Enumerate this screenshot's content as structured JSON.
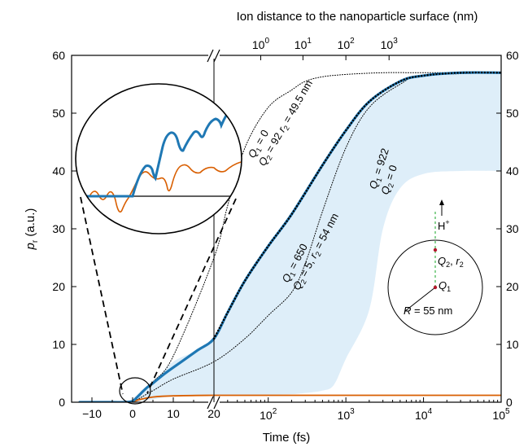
{
  "chart_data": {
    "type": "line",
    "title": "",
    "xlabel": "Time (fs)",
    "ylabel": "p",
    "ylabel_subscript": "r",
    "ylabel_unit": " (a.u.)",
    "top_axis_label": "Ion distance to the nanoparticle surface (nm)",
    "x_scale": "linear up to 20 fs (axis break), logarithmic from 20 to 100000 fs",
    "ylim": [
      0,
      60
    ],
    "x_linear_range": [
      -15,
      20
    ],
    "x_log_range": [
      20,
      100000
    ],
    "y_ticks": [
      "0",
      "10",
      "20",
      "30",
      "40",
      "50",
      "60"
    ],
    "x_ticks_linear": [
      "−10",
      "0",
      "10",
      "20"
    ],
    "x_ticks_log": [
      {
        "base": "10",
        "exp": "2"
      },
      {
        "base": "10",
        "exp": "3"
      },
      {
        "base": "10",
        "exp": "4"
      },
      {
        "base": "10",
        "exp": "5"
      }
    ],
    "top_ticks": [
      {
        "base": "10",
        "exp": "0"
      },
      {
        "base": "10",
        "exp": "1"
      },
      {
        "base": "10",
        "exp": "2"
      },
      {
        "base": "10",
        "exp": "3"
      }
    ],
    "grid": false,
    "series": [
      {
        "color": "#1f78b4",
        "style": "thick solid",
        "x": [
          -13,
          -10,
          -5,
          -2,
          0,
          1,
          2,
          3,
          4,
          5,
          8,
          12,
          16,
          20,
          30,
          50,
          100,
          200,
          500,
          1000,
          2000,
          5000,
          10000,
          30000,
          100000
        ],
        "y": [
          0,
          0,
          0,
          0,
          0.2,
          0.8,
          1.5,
          2.2,
          2.8,
          3.3,
          5,
          7,
          9,
          11,
          15.5,
          21,
          27,
          32.5,
          41,
          47,
          52,
          55.5,
          56.5,
          57,
          57
        ]
      },
      {
        "color": "#d95f02",
        "style": "solid",
        "x": [
          -13,
          -10,
          -5,
          -2,
          0,
          2,
          5,
          10,
          20,
          50,
          100,
          1000,
          10000,
          100000
        ],
        "y": [
          0,
          0,
          0,
          0,
          0.1,
          0.5,
          0.9,
          1.1,
          1.2,
          1.2,
          1.2,
          1.2,
          1.2,
          1.2
        ]
      },
      {
        "color": "#000000",
        "style": "thick dotted",
        "x": [
          20,
          30,
          50,
          100,
          200,
          500,
          1000,
          2000,
          5000,
          10000,
          30000,
          100000
        ],
        "y": [
          11,
          15.5,
          21,
          27,
          32.5,
          41,
          47,
          52,
          55.5,
          56.5,
          57,
          57
        ]
      },
      {
        "color": "#000000",
        "style": "thin dotted",
        "x": [
          0,
          5,
          10,
          20,
          30,
          50,
          100,
          200,
          300,
          500,
          1000,
          3000,
          10000,
          100000
        ],
        "y": [
          0,
          3.5,
          8,
          25,
          34,
          44,
          51,
          54,
          55.5,
          56.3,
          56.7,
          57,
          57,
          57
        ]
      },
      {
        "color": "#000000",
        "style": "thin dotted",
        "x": [
          0,
          5,
          10,
          20,
          50,
          100,
          200,
          300,
          500,
          1000,
          2000,
          5000,
          10000,
          100000
        ],
        "y": [
          0,
          2,
          4,
          7,
          11,
          15,
          19,
          24,
          33,
          44,
          51,
          55,
          56.5,
          57
        ]
      }
    ],
    "shaded_band": {
      "color": "#deeef9",
      "x": [
        0,
        5,
        10,
        20,
        50,
        100,
        200,
        300,
        500,
        700,
        1000,
        2000,
        3000,
        5000,
        10000,
        30000,
        100000
      ],
      "upper": [
        0,
        3.3,
        7,
        11,
        21,
        27,
        32.5,
        36,
        41,
        44,
        47,
        52,
        54,
        55.5,
        56.5,
        57,
        57
      ],
      "lower": [
        0,
        0.5,
        1,
        1.2,
        1.2,
        1.3,
        1.4,
        1.6,
        2,
        3,
        7.5,
        16,
        30,
        37,
        39.5,
        40,
        40
      ]
    },
    "annotations": [
      {
        "line1_sym": "Q",
        "line1_sub": "1",
        "line1_val": " = 0",
        "line2_sym": "Q",
        "line2_sub": "2",
        "line2_val": " = 92 ",
        "line2_sym2": "r",
        "line2_sub2": "2",
        "line2_val2": " = 49.5 nm"
      },
      {
        "line1_sym": "Q",
        "line1_sub": "1",
        "line1_val": " = 650",
        "line2_sym": "Q",
        "line2_sub": "2",
        "line2_val": " = 5, ",
        "line2_sym2": "r",
        "line2_sub2": "2",
        "line2_val2": " = 54 nm"
      },
      {
        "line1_sym": "Q",
        "line1_sub": "1",
        "line1_val": " = 922",
        "line2_sym": "Q",
        "line2_sub": "2",
        "line2_val": " = 0",
        "line2_sym2": "",
        "line2_sub2": "",
        "line2_val2": ""
      }
    ],
    "inset_schematic": {
      "ion_label": "H",
      "ion_sup": "+",
      "q2_sym": "Q",
      "q2_sub": "2",
      "q2_sep": ", ",
      "r2_sym": "r",
      "r2_sub": "2",
      "q1_sym": "Q",
      "q1_sub": "1",
      "radius_sym": "R",
      "radius_val": " = 55 nm"
    },
    "zoom_inset": {
      "blue_color": "#1f78b4",
      "orange_color": "#d95f02"
    }
  }
}
